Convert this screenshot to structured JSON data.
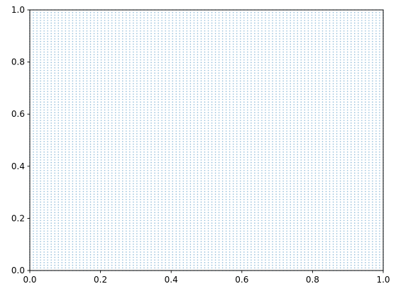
{
  "chart_data": {
    "type": "scatter",
    "title": "",
    "xlabel": "",
    "ylabel": "",
    "xlim": [
      0,
      1
    ],
    "ylim": [
      0,
      1
    ],
    "x_ticks": [
      "0.0",
      "0.2",
      "0.4",
      "0.6",
      "0.8",
      "1.0"
    ],
    "y_ticks": [
      "0.0",
      "0.2",
      "0.4",
      "0.6",
      "0.8",
      "1.0"
    ],
    "grid": false,
    "legend": "none",
    "marker_color": "#1f77b4",
    "marker_alpha": 0.5,
    "series": [
      {
        "points_grid": {
          "x_start": 0.0,
          "x_stop": 1.0,
          "x_count": 100,
          "y_start": 0.0,
          "y_stop": 1.0,
          "y_count": 100
        }
      }
    ]
  }
}
